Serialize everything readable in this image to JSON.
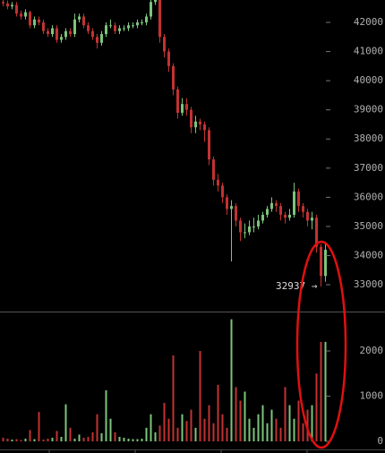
{
  "chart_data": [
    {
      "type": "candlestick",
      "up_color": "#7cc47c",
      "down_color": "#c23232",
      "ylim": [
        32080,
        42768
      ],
      "yticks": [
        33000,
        34000,
        35000,
        36000,
        37000,
        38000,
        39000,
        40000,
        41000,
        42000
      ],
      "annotation": "32937 →",
      "open": [
        42700,
        42650,
        42550,
        42600,
        42300,
        42200,
        42350,
        41900,
        42100,
        42000,
        41700,
        41600,
        41800,
        41400,
        41500,
        41700,
        41600,
        42100,
        42200,
        41900,
        41700,
        41500,
        41300,
        41600,
        41900,
        41900,
        41700,
        41800,
        41800,
        41900,
        41900,
        42000,
        42000,
        42200,
        42700,
        42800,
        41500,
        41000,
        40500,
        39700,
        38900,
        39200,
        39000,
        38400,
        38600,
        38500,
        38300,
        37300,
        36600,
        36400,
        36000,
        35600,
        35700,
        35200,
        34800,
        34800,
        35000,
        35000,
        35200,
        35400,
        35600,
        35800,
        35700,
        35400,
        35300,
        35400,
        36200,
        35700,
        35500,
        35200,
        35300,
        34300,
        33300
      ],
      "high": [
        42850,
        42750,
        42700,
        42700,
        42400,
        42450,
        42400,
        42200,
        42200,
        42100,
        41800,
        41900,
        41900,
        41600,
        41800,
        41800,
        42300,
        42300,
        42300,
        42000,
        41800,
        41600,
        41700,
        42000,
        42100,
        42000,
        41900,
        41900,
        42000,
        42000,
        42100,
        42100,
        42300,
        42800,
        42900,
        42900,
        41600,
        41100,
        40600,
        39800,
        39400,
        39400,
        39100,
        38800,
        38700,
        38600,
        38400,
        37400,
        36800,
        36500,
        36100,
        35900,
        35800,
        35300,
        35100,
        35200,
        35300,
        35400,
        35500,
        35700,
        36000,
        35900,
        35800,
        35500,
        35600,
        36500,
        36300,
        35800,
        35600,
        35500,
        35400,
        34400,
        34400
      ],
      "low": [
        42550,
        42450,
        42450,
        42200,
        42100,
        42100,
        41800,
        41800,
        41900,
        41600,
        41500,
        41500,
        41300,
        41300,
        41400,
        41500,
        41500,
        42000,
        41800,
        41600,
        41400,
        41100,
        41200,
        41500,
        41800,
        41600,
        41600,
        41700,
        41700,
        41800,
        41800,
        41900,
        41900,
        42100,
        42600,
        41300,
        40800,
        40300,
        39500,
        38700,
        38800,
        38800,
        38200,
        38200,
        38300,
        37900,
        37100,
        36400,
        36200,
        35800,
        35400,
        33800,
        35000,
        34500,
        34600,
        34700,
        34800,
        34900,
        35100,
        35300,
        35500,
        35500,
        35200,
        35100,
        35200,
        35300,
        35500,
        35300,
        35000,
        34900,
        34100,
        32937,
        33100
      ],
      "close": [
        42650,
        42550,
        42600,
        42300,
        42200,
        42350,
        41900,
        42100,
        42000,
        41700,
        41600,
        41800,
        41400,
        41500,
        41700,
        41600,
        42100,
        42200,
        41900,
        41700,
        41500,
        41300,
        41600,
        41900,
        41900,
        41700,
        41800,
        41800,
        41900,
        41900,
        42000,
        42000,
        42200,
        42700,
        42800,
        41500,
        41000,
        40500,
        39700,
        38900,
        39200,
        39000,
        38400,
        38600,
        38500,
        38300,
        37300,
        36600,
        36400,
        36000,
        35600,
        35700,
        35200,
        34800,
        34800,
        35000,
        35000,
        35200,
        35400,
        35600,
        35800,
        35700,
        35400,
        35300,
        35400,
        36200,
        35700,
        35500,
        35200,
        35300,
        34300,
        33300,
        34200
      ]
    },
    {
      "type": "bar",
      "ylim": [
        0,
        2871
      ],
      "yticks": [
        0,
        1000,
        2000
      ],
      "values": [
        80,
        60,
        40,
        50,
        30,
        60,
        250,
        50,
        650,
        40,
        60,
        80,
        230,
        100,
        820,
        300,
        60,
        150,
        80,
        100,
        200,
        600,
        180,
        1130,
        500,
        200,
        100,
        80,
        60,
        50,
        50,
        60,
        300,
        600,
        200,
        350,
        850,
        500,
        1900,
        300,
        600,
        450,
        700,
        300,
        2000,
        500,
        800,
        400,
        1250,
        600,
        300,
        2700,
        1200,
        900,
        1100,
        500,
        300,
        600,
        800,
        400,
        700,
        500,
        300,
        1200,
        800,
        500,
        900,
        400,
        700,
        800,
        1500,
        2200,
        2200
      ]
    }
  ]
}
